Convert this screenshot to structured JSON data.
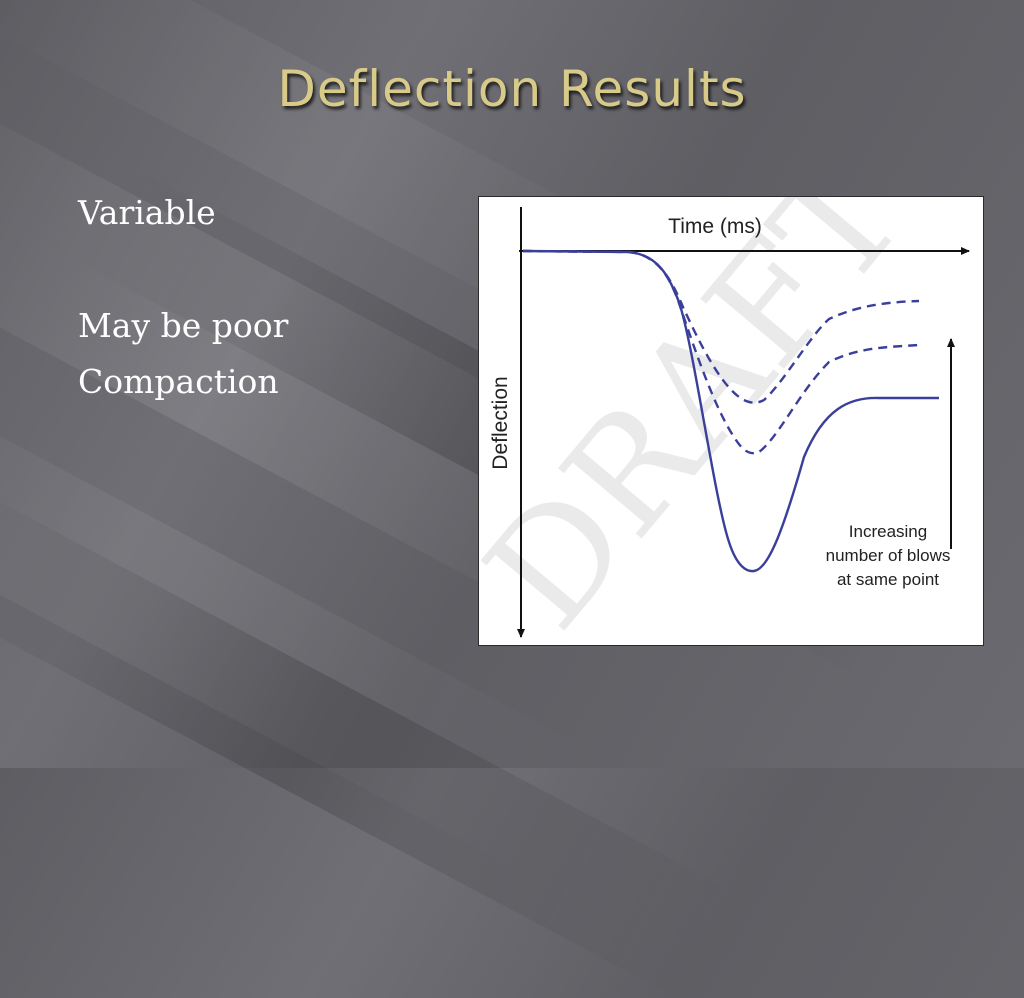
{
  "slide": {
    "title": "Deflection Results",
    "bullets": [
      "Variable",
      "May be poor",
      "Compaction"
    ]
  },
  "figure": {
    "x_axis_label": "Time (ms)",
    "y_axis_label": "Deflection",
    "annotation_lines": [
      "Increasing",
      "number of blows",
      "at same point"
    ],
    "watermark": "DRAFT",
    "curve_color": "#3a3f9a"
  }
}
